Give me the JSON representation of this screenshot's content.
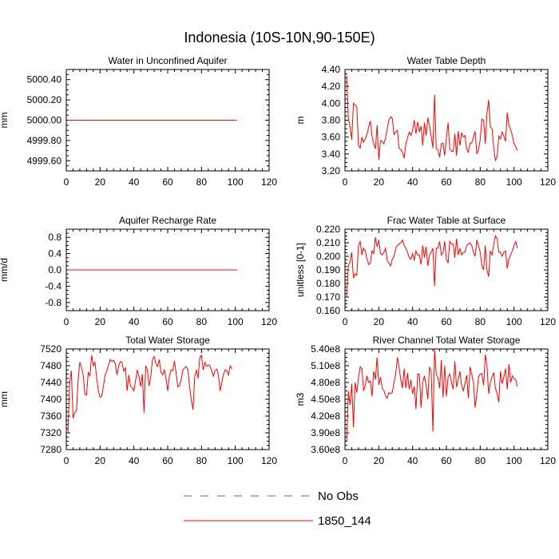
{
  "chart_data": {
    "title": "Indonesia (10S-10N,90-150E)",
    "legend": [
      {
        "label": "No Obs",
        "color": "#6060a0",
        "style": "dashed"
      },
      {
        "label": "1850_144",
        "color": "#ff0000",
        "style": "solid"
      }
    ],
    "panels": [
      {
        "type": "line",
        "title": "Water in Unconfined Aquifer",
        "ylabel": "mm",
        "xlim": [
          0,
          120
        ],
        "xticks": [
          0,
          20,
          40,
          60,
          80,
          100,
          120
        ],
        "ylim": [
          4999.5,
          5000.5
        ],
        "yticks": [
          4999.6,
          4999.8,
          5000.0,
          5000.2,
          5000.4
        ],
        "ytick_labels": [
          "4999.60",
          "4999.80",
          "5000.00",
          "5000.20",
          "5000.40"
        ],
        "series": [
          {
            "name": "1850_144",
            "color": "#ff0000",
            "mode": "constant",
            "value": 5000.0,
            "x_start": 1,
            "x_end": 101
          }
        ]
      },
      {
        "type": "line",
        "title": "Water Table Depth",
        "ylabel": "m",
        "xlim": [
          0,
          120
        ],
        "xticks": [
          0,
          20,
          40,
          60,
          80,
          100,
          120
        ],
        "ylim": [
          3.2,
          4.4
        ],
        "yticks": [
          3.2,
          3.4,
          3.6,
          3.8,
          4.0,
          4.2,
          4.4
        ],
        "ytick_labels": [
          "3.20",
          "3.40",
          "3.60",
          "3.80",
          "4.00",
          "4.20",
          "4.40"
        ],
        "series": [
          {
            "name": "1850_144",
            "color": "#ff0000",
            "mode": "values",
            "x_start": 1,
            "values": [
              4.33,
              3.82,
              3.72,
              3.57,
              4.0,
              3.98,
              3.96,
              3.5,
              3.47,
              3.6,
              3.54,
              3.58,
              3.63,
              3.72,
              3.79,
              3.61,
              3.52,
              3.46,
              3.74,
              3.33,
              3.56,
              3.55,
              3.52,
              3.59,
              3.7,
              3.8,
              3.84,
              3.82,
              3.63,
              3.66,
              3.68,
              3.47,
              3.45,
              3.42,
              3.35,
              3.52,
              3.59,
              3.66,
              3.62,
              3.68,
              3.8,
              3.64,
              3.78,
              3.66,
              3.73,
              3.5,
              3.77,
              3.62,
              3.83,
              3.74,
              3.61,
              3.47,
              4.1,
              3.46,
              3.45,
              3.36,
              3.52,
              3.53,
              3.38,
              3.59,
              3.77,
              3.46,
              3.43,
              3.43,
              3.64,
              3.38,
              3.67,
              3.5,
              3.65,
              3.6,
              3.62,
              3.46,
              3.42,
              3.53,
              3.53,
              3.6,
              3.67,
              3.4,
              3.45,
              3.57,
              3.81,
              3.8,
              3.52,
              3.88,
              4.04,
              3.72,
              3.7,
              3.48,
              3.32,
              3.37,
              3.61,
              3.58,
              3.66,
              3.61,
              3.55,
              3.89,
              3.74,
              3.69,
              3.62,
              3.52,
              3.49,
              3.44
            ]
          }
        ]
      },
      {
        "type": "line",
        "title": "Aquifer Recharge Rate",
        "ylabel": "mm/d",
        "xlim": [
          0,
          120
        ],
        "xticks": [
          0,
          20,
          40,
          60,
          80,
          100,
          120
        ],
        "ylim": [
          -1.0,
          1.0
        ],
        "yticks": [
          -0.8,
          -0.4,
          0.0,
          0.4,
          0.8
        ],
        "ytick_labels": [
          "-0.8",
          "-0.4",
          "0.0",
          "0.4",
          "0.8"
        ],
        "series": [
          {
            "name": "1850_144",
            "color": "#ff0000",
            "mode": "constant",
            "value": 0.0,
            "x_start": 1,
            "x_end": 101
          }
        ]
      },
      {
        "type": "line",
        "title": "Frac Water Table at Surface",
        "ylabel": "unitless [0-1]",
        "xlim": [
          0,
          120
        ],
        "xticks": [
          0,
          20,
          40,
          60,
          80,
          100,
          120
        ],
        "ylim": [
          0.16,
          0.22
        ],
        "yticks": [
          0.16,
          0.17,
          0.18,
          0.19,
          0.2,
          0.21,
          0.22
        ],
        "ytick_labels": [
          "0.160",
          "0.170",
          "0.180",
          "0.190",
          "0.200",
          "0.210",
          "0.220"
        ],
        "series": [
          {
            "name": "1850_144",
            "color": "#ff0000",
            "mode": "values",
            "x_start": 1,
            "values": [
              0.17,
              0.193,
              0.196,
              0.203,
              0.184,
              0.187,
              0.186,
              0.208,
              0.211,
              0.201,
              0.206,
              0.204,
              0.198,
              0.194,
              0.195,
              0.204,
              0.202,
              0.214,
              0.207,
              0.212,
              0.202,
              0.201,
              0.203,
              0.206,
              0.197,
              0.195,
              0.193,
              0.198,
              0.2,
              0.206,
              0.208,
              0.209,
              0.21,
              0.212,
              0.208,
              0.206,
              0.203,
              0.199,
              0.198,
              0.202,
              0.197,
              0.204,
              0.201,
              0.201,
              0.194,
              0.208,
              0.199,
              0.207,
              0.193,
              0.201,
              0.203,
              0.206,
              0.178,
              0.206,
              0.206,
              0.211,
              0.201,
              0.203,
              0.211,
              0.198,
              0.195,
              0.211,
              0.209,
              0.209,
              0.199,
              0.213,
              0.201,
              0.206,
              0.201,
              0.203,
              0.203,
              0.208,
              0.209,
              0.21,
              0.208,
              0.203,
              0.2,
              0.212,
              0.208,
              0.203,
              0.193,
              0.19,
              0.208,
              0.19,
              0.185,
              0.204,
              0.201,
              0.209,
              0.215,
              0.213,
              0.203,
              0.203,
              0.2,
              0.203,
              0.204,
              0.191,
              0.198,
              0.201,
              0.204,
              0.208,
              0.211,
              0.206
            ]
          }
        ]
      },
      {
        "type": "line",
        "title": "Total Water Storage",
        "ylabel": "mm",
        "xlim": [
          0,
          120
        ],
        "xticks": [
          0,
          20,
          40,
          60,
          80,
          100,
          120
        ],
        "ylim": [
          7280,
          7520
        ],
        "yticks": [
          7280,
          7320,
          7360,
          7400,
          7440,
          7480,
          7520
        ],
        "ytick_labels": [
          "7280",
          "7320",
          "7360",
          "7400",
          "7440",
          "7480",
          "7520"
        ],
        "series": [
          {
            "name": "1850_144",
            "color": "#ff0000",
            "mode": "values",
            "x_start": 1,
            "values": [
              7320,
              7440,
              7468,
              7355,
              7368,
              7372,
              7445,
              7488,
              7476,
              7458,
              7412,
              7410,
              7465,
              7455,
              7505,
              7480,
              7488,
              7450,
              7420,
              7405,
              7408,
              7432,
              7458,
              7468,
              7482,
              7495,
              7490,
              7493,
              7485,
              7458,
              7480,
              7490,
              7488,
              7467,
              7475,
              7420,
              7458,
              7432,
              7427,
              7420,
              7445,
              7470,
              7455,
              7430,
              7460,
              7368,
              7480,
              7470,
              7432,
              7455,
              7495,
              7502,
              7485,
              7478,
              7495,
              7465,
              7458,
              7470,
              7450,
              7420,
              7455,
              7470,
              7468,
              7492,
              7462,
              7430,
              7432,
              7448,
              7470,
              7475,
              7478,
              7470,
              7428,
              7398,
              7375,
              7455,
              7470,
              7450,
              7500,
              7505,
              7470,
              7488,
              7478,
              7482,
              7480,
              7468,
              7455,
              7468,
              7472,
              7458,
              7420,
              7440,
              7460,
              7470,
              7468,
              7458,
              7480,
              7472
            ]
          }
        ]
      },
      {
        "type": "line",
        "title": "River Channel Total Water Storage",
        "ylabel": "m3",
        "xlim": [
          0,
          120
        ],
        "xticks": [
          0,
          20,
          40,
          60,
          80,
          100,
          120
        ],
        "ylim": [
          360000000,
          540000000
        ],
        "yticks": [
          360000000,
          390000000,
          420000000,
          450000000,
          480000000,
          510000000,
          540000000
        ],
        "ytick_labels": [
          "3.60e8",
          "3.90e8",
          "4.20e8",
          "4.50e8",
          "4.80e8",
          "5.10e8",
          "5.40e8"
        ],
        "series": [
          {
            "name": "1850_144",
            "color": "#ff0000",
            "mode": "values",
            "x_start": 1,
            "values": [
              375000000,
              465000000,
              440000000,
              478000000,
              400000000,
              480000000,
              462000000,
              488000000,
              508000000,
              505000000,
              465000000,
              475000000,
              492000000,
              480000000,
              483000000,
              455000000,
              500000000,
              485000000,
              525000000,
              476000000,
              490000000,
              470000000,
              466000000,
              456000000,
              452000000,
              462000000,
              460000000,
              462000000,
              480000000,
              495000000,
              525000000,
              508000000,
              485000000,
              470000000,
              505000000,
              470000000,
              497000000,
              468000000,
              485000000,
              460000000,
              473000000,
              432000000,
              495000000,
              495000000,
              435000000,
              480000000,
              492000000,
              475000000,
              450000000,
              508000000,
              500000000,
              392000000,
              540000000,
              495000000,
              488000000,
              470000000,
              520000000,
              453000000,
              510000000,
              455000000,
              490000000,
              495000000,
              480000000,
              468000000,
              518000000,
              472000000,
              485000000,
              500000000,
              475000000,
              465000000,
              478000000,
              493000000,
              452000000,
              508000000,
              495000000,
              480000000,
              435000000,
              460000000,
              490000000,
              495000000,
              496000000,
              475000000,
              530000000,
              510000000,
              460000000,
              480000000,
              490000000,
              498000000,
              470000000,
              460000000,
              445000000,
              500000000,
              478000000,
              490000000,
              505000000,
              468000000,
              513000000,
              480000000,
              492000000,
              487000000,
              485000000,
              473000000
            ]
          }
        ]
      }
    ]
  }
}
